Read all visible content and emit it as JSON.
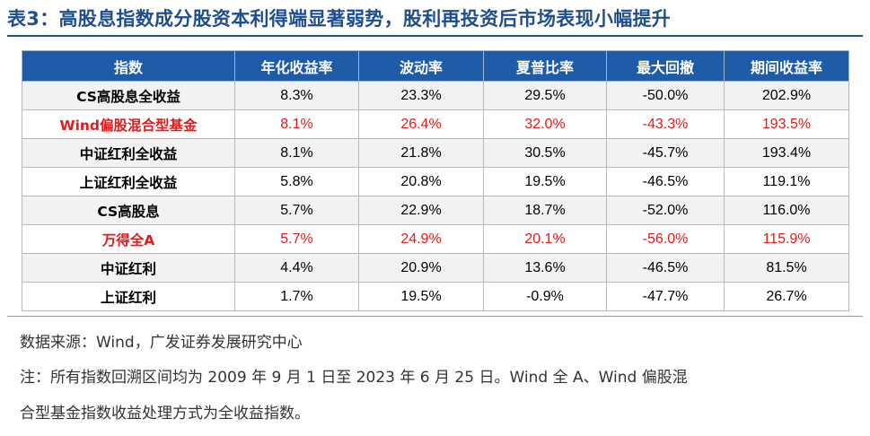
{
  "title": "表3：高股息指数成分股资本利得端显著弱势，股利再投资后市场表现小幅提升",
  "table": {
    "headers": [
      "指数",
      "年化收益率",
      "波动率",
      "夏普比率",
      "最大回撤",
      "期间收益率"
    ],
    "rows": [
      {
        "name": "CS高股息全收益",
        "cells": [
          "8.3%",
          "23.3%",
          "29.5%",
          "-50.0%",
          "202.9%"
        ],
        "highlight": false
      },
      {
        "name": "Wind偏股混合型基金",
        "cells": [
          "8.1%",
          "26.4%",
          "32.0%",
          "-43.3%",
          "193.5%"
        ],
        "highlight": true
      },
      {
        "name": "中证红利全收益",
        "cells": [
          "8.1%",
          "21.8%",
          "30.5%",
          "-45.7%",
          "193.4%"
        ],
        "highlight": false
      },
      {
        "name": "上证红利全收益",
        "cells": [
          "5.8%",
          "20.8%",
          "19.5%",
          "-46.5%",
          "119.1%"
        ],
        "highlight": false
      },
      {
        "name": "CS高股息",
        "cells": [
          "5.7%",
          "22.9%",
          "18.7%",
          "-52.0%",
          "116.0%"
        ],
        "highlight": false
      },
      {
        "name": "万得全A",
        "cells": [
          "5.7%",
          "24.9%",
          "20.1%",
          "-56.0%",
          "115.9%"
        ],
        "highlight": true
      },
      {
        "name": "中证红利",
        "cells": [
          "4.4%",
          "20.9%",
          "13.6%",
          "-46.5%",
          "81.5%"
        ],
        "highlight": false
      },
      {
        "name": "上证红利",
        "cells": [
          "1.7%",
          "19.5%",
          "-0.9%",
          "-47.7%",
          "26.7%"
        ],
        "highlight": false
      }
    ]
  },
  "source": "数据来源：Wind，广发证券发展研究中心",
  "note_line1": "注：所有指数回溯区间均为 2009 年 9 月 1 日至 2023 年 6 月 25 日。Wind 全 A、Wind 偏股混",
  "note_line2": "合型基金指数收益处理方式为全收益指数。",
  "colors": {
    "header_bg": "#1f5ca8",
    "title": "#1f4e8f",
    "highlight": "#e01b1b",
    "row_alt": "#f2f2f2"
  }
}
